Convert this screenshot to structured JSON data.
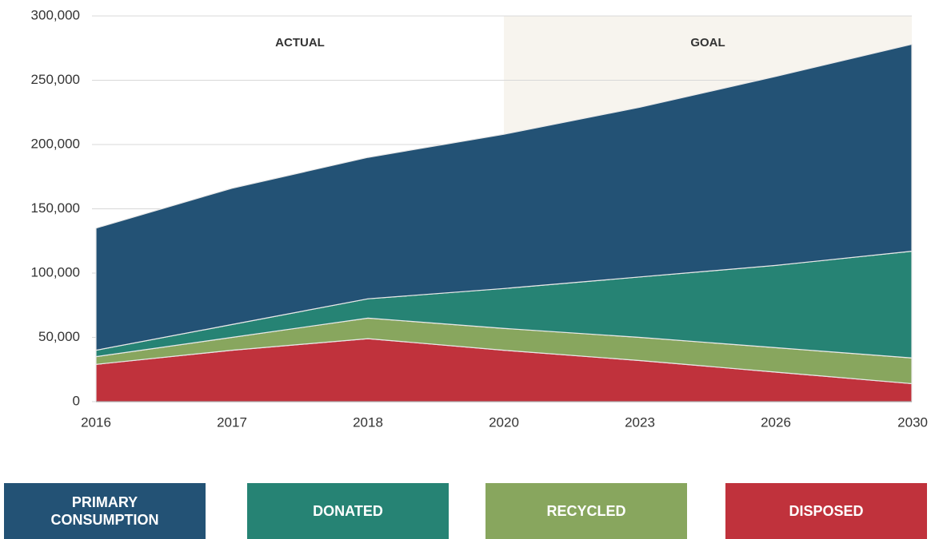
{
  "chart_data": {
    "type": "stacked_area",
    "categories": [
      "2016",
      "2017",
      "2018",
      "2020",
      "2023",
      "2026",
      "2030"
    ],
    "series": [
      {
        "name": "PRIMARY CONSUMPTION",
        "color": "#235275",
        "values": [
          95000,
          106000,
          110000,
          120000,
          132000,
          147000,
          161000
        ]
      },
      {
        "name": "DONATED",
        "color": "#268374",
        "values": [
          5000,
          10000,
          15000,
          31000,
          47000,
          64000,
          83000
        ]
      },
      {
        "name": "RECYCLED",
        "color": "#88a65e",
        "values": [
          6000,
          10000,
          16000,
          17000,
          18000,
          19000,
          20000
        ]
      },
      {
        "name": "DISPOSED",
        "color": "#c0323c",
        "values": [
          29000,
          40000,
          49000,
          40000,
          32000,
          23000,
          14000
        ]
      }
    ],
    "regions": [
      {
        "label": "ACTUAL",
        "from": "2016",
        "to": "2020"
      },
      {
        "label": "GOAL",
        "from": "2020",
        "to": "2030",
        "color": "#f7f4ee"
      }
    ],
    "ylim": [
      0,
      300000
    ],
    "yticks": [
      0,
      {
        "value": 50000,
        "label": "50,000"
      },
      {
        "value": 100000,
        "label": "100,000"
      },
      {
        "value": 150000,
        "label": "150,000"
      },
      {
        "value": 200000,
        "label": "200,000"
      },
      {
        "value": 250000,
        "label": "250,000"
      },
      {
        "value": 300000,
        "label": "300,000"
      }
    ],
    "grid": true
  }
}
